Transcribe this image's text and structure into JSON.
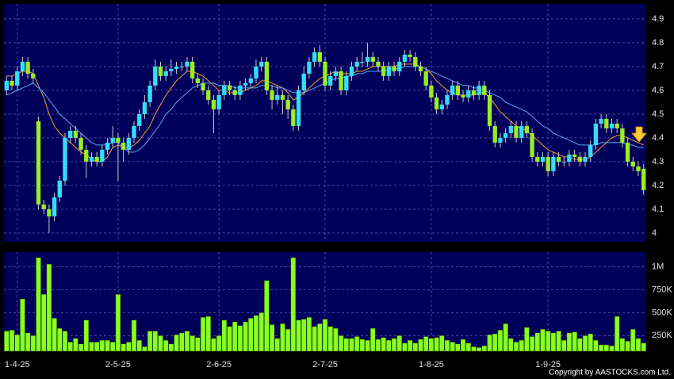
{
  "chart_data": {
    "type": "candlestick",
    "categories": [
      null,
      null,
      "1-4-25",
      null,
      null,
      null,
      null,
      null,
      null,
      null,
      null,
      null,
      null,
      null,
      null,
      null,
      null,
      null,
      null,
      null,
      null,
      "2-5-25",
      null,
      null,
      null,
      null,
      null,
      null,
      null,
      null,
      null,
      null,
      null,
      null,
      null,
      null,
      null,
      null,
      null,
      null,
      "2-6-25",
      null,
      null,
      null,
      null,
      null,
      null,
      null,
      null,
      null,
      null,
      null,
      null,
      null,
      null,
      null,
      null,
      null,
      null,
      null,
      "2-7-25",
      null,
      null,
      null,
      null,
      null,
      null,
      null,
      null,
      null,
      null,
      null,
      null,
      null,
      null,
      null,
      null,
      null,
      null,
      null,
      "1-8-25",
      null,
      null,
      null,
      null,
      null,
      null,
      null,
      null,
      null,
      null,
      null,
      null,
      null,
      null,
      null,
      null,
      null,
      null,
      null,
      null,
      null,
      "1-9-25",
      null,
      null,
      null,
      null,
      null,
      null,
      null,
      null,
      null,
      null,
      null,
      null,
      null,
      null,
      null,
      null,
      null,
      null
    ],
    "open": [
      4.6,
      4.64,
      4.62,
      4.68,
      4.72,
      4.67,
      4.47,
      4.12,
      4.1,
      4.07,
      4.15,
      4.22,
      4.4,
      4.43,
      4.4,
      4.35,
      4.3,
      4.32,
      4.3,
      4.35,
      4.38,
      4.4,
      4.38,
      4.35,
      4.4,
      4.45,
      4.5,
      4.55,
      4.62,
      4.7,
      4.66,
      4.68,
      4.69,
      4.7,
      4.7,
      4.72,
      4.65,
      4.63,
      4.6,
      4.56,
      4.52,
      4.58,
      4.62,
      4.6,
      4.58,
      4.62,
      4.63,
      4.65,
      4.7,
      4.72,
      4.6,
      4.56,
      4.58,
      4.56,
      4.52,
      4.45,
      4.6,
      4.67,
      4.72,
      4.76,
      4.72,
      4.62,
      4.66,
      4.68,
      4.6,
      4.66,
      4.7,
      4.72,
      4.72,
      4.74,
      4.72,
      4.7,
      4.66,
      4.7,
      4.68,
      4.72,
      4.75,
      4.74,
      4.7,
      4.68,
      4.62,
      4.57,
      4.52,
      4.54,
      4.58,
      4.62,
      4.58,
      4.57,
      4.6,
      4.58,
      4.62,
      4.58,
      4.45,
      4.38,
      4.4,
      4.42,
      4.45,
      4.4,
      4.45,
      4.42,
      4.32,
      4.3,
      4.32,
      4.26,
      4.32,
      4.3,
      4.3,
      4.33,
      4.32,
      4.3,
      4.32,
      4.37,
      4.46,
      4.48,
      4.44,
      4.46,
      4.44,
      4.38,
      4.3,
      4.28,
      4.27
    ],
    "high": [
      4.66,
      4.66,
      4.7,
      4.74,
      4.74,
      4.69,
      4.49,
      4.14,
      4.12,
      4.17,
      4.24,
      4.42,
      4.45,
      4.45,
      4.42,
      4.37,
      4.34,
      4.34,
      4.37,
      4.4,
      4.45,
      4.42,
      4.4,
      4.42,
      4.47,
      4.52,
      4.58,
      4.64,
      4.73,
      4.72,
      4.7,
      4.73,
      4.72,
      4.72,
      4.74,
      4.74,
      4.67,
      4.65,
      4.62,
      4.58,
      4.6,
      4.64,
      4.64,
      4.62,
      4.64,
      4.65,
      4.67,
      4.73,
      4.74,
      4.74,
      4.62,
      4.62,
      4.6,
      4.58,
      4.54,
      4.62,
      4.7,
      4.74,
      4.78,
      4.79,
      4.74,
      4.68,
      4.7,
      4.7,
      4.68,
      4.72,
      4.74,
      4.76,
      4.8,
      4.76,
      4.74,
      4.72,
      4.72,
      4.72,
      4.74,
      4.77,
      4.77,
      4.76,
      4.72,
      4.7,
      4.64,
      4.59,
      4.56,
      4.6,
      4.64,
      4.64,
      4.6,
      4.62,
      4.62,
      4.64,
      4.64,
      4.6,
      4.47,
      4.42,
      4.44,
      4.47,
      4.47,
      4.47,
      4.47,
      4.44,
      4.34,
      4.34,
      4.34,
      4.34,
      4.34,
      4.32,
      4.35,
      4.35,
      4.34,
      4.34,
      4.39,
      4.48,
      4.5,
      4.5,
      4.48,
      4.48,
      4.46,
      4.4,
      4.32,
      4.3,
      4.29
    ],
    "low": [
      4.58,
      4.6,
      4.6,
      4.66,
      4.65,
      4.63,
      4.1,
      4.08,
      4.0,
      4.05,
      4.13,
      4.2,
      4.38,
      4.38,
      4.33,
      4.23,
      4.28,
      4.28,
      4.28,
      4.33,
      4.36,
      4.22,
      4.3,
      4.33,
      4.38,
      4.43,
      4.48,
      4.53,
      4.6,
      4.64,
      4.64,
      4.66,
      4.67,
      4.68,
      4.68,
      4.63,
      4.61,
      4.58,
      4.54,
      4.42,
      4.5,
      4.56,
      4.58,
      4.56,
      4.56,
      4.6,
      4.61,
      4.63,
      4.68,
      4.58,
      4.52,
      4.54,
      4.5,
      4.48,
      4.43,
      4.43,
      4.58,
      4.65,
      4.7,
      4.7,
      4.6,
      4.6,
      4.64,
      4.58,
      4.58,
      4.64,
      4.68,
      4.7,
      4.7,
      4.7,
      4.68,
      4.64,
      4.64,
      4.66,
      4.66,
      4.7,
      4.72,
      4.68,
      4.66,
      4.6,
      4.55,
      4.5,
      4.5,
      4.52,
      4.56,
      4.56,
      4.55,
      4.55,
      4.56,
      4.56,
      4.56,
      4.43,
      4.36,
      4.36,
      4.38,
      4.4,
      4.38,
      4.38,
      4.4,
      4.3,
      4.28,
      4.28,
      4.24,
      4.24,
      4.28,
      4.28,
      4.28,
      4.3,
      4.28,
      4.28,
      4.3,
      4.35,
      4.44,
      4.42,
      4.42,
      4.42,
      4.36,
      4.28,
      4.26,
      4.24,
      4.16
    ],
    "close": [
      4.64,
      4.62,
      4.68,
      4.72,
      4.67,
      4.65,
      4.12,
      4.1,
      4.07,
      4.15,
      4.22,
      4.4,
      4.43,
      4.4,
      4.35,
      4.3,
      4.32,
      4.3,
      4.35,
      4.38,
      4.4,
      4.38,
      4.35,
      4.4,
      4.45,
      4.5,
      4.55,
      4.62,
      4.7,
      4.66,
      4.68,
      4.69,
      4.7,
      4.7,
      4.72,
      4.65,
      4.63,
      4.6,
      4.56,
      4.52,
      4.58,
      4.62,
      4.6,
      4.58,
      4.62,
      4.63,
      4.65,
      4.7,
      4.72,
      4.6,
      4.56,
      4.58,
      4.56,
      4.52,
      4.45,
      4.6,
      4.67,
      4.72,
      4.76,
      4.72,
      4.62,
      4.66,
      4.68,
      4.6,
      4.66,
      4.7,
      4.72,
      4.72,
      4.74,
      4.72,
      4.7,
      4.66,
      4.7,
      4.68,
      4.72,
      4.75,
      4.74,
      4.7,
      4.68,
      4.62,
      4.57,
      4.52,
      4.54,
      4.58,
      4.62,
      4.58,
      4.57,
      4.6,
      4.58,
      4.62,
      4.58,
      4.45,
      4.38,
      4.4,
      4.42,
      4.45,
      4.4,
      4.45,
      4.42,
      4.32,
      4.3,
      4.32,
      4.26,
      4.32,
      4.3,
      4.3,
      4.33,
      4.32,
      4.3,
      4.32,
      4.37,
      4.46,
      4.48,
      4.44,
      4.46,
      4.44,
      4.38,
      4.3,
      4.28,
      4.26,
      4.18
    ],
    "up_color": "#33ddff",
    "down_color": "#99ee22",
    "wick_color": "#c8c8c8",
    "ylim": [
      3.963,
      4.963
    ],
    "yticks": [
      4,
      4.1,
      4.2,
      4.3,
      4.4,
      4.5,
      4.6,
      4.7,
      4.8,
      4.9
    ],
    "grid": true,
    "ma_lines": [
      {
        "color": "#ff9933",
        "values": [
          4.66,
          4.66,
          4.67,
          4.68,
          4.68,
          4.67,
          4.62,
          4.57,
          4.5,
          4.45,
          4.42,
          4.4,
          4.38,
          4.36,
          4.34,
          4.33,
          4.31,
          4.3,
          4.3,
          4.32,
          4.36,
          4.37,
          4.36,
          4.36,
          4.37,
          4.39,
          4.42,
          4.45,
          4.5,
          4.54,
          4.58,
          4.61,
          4.64,
          4.66,
          4.68,
          4.68,
          4.67,
          4.66,
          4.64,
          4.62,
          4.6,
          4.6,
          4.59,
          4.59,
          4.59,
          4.6,
          4.61,
          4.62,
          4.64,
          4.64,
          4.63,
          4.62,
          4.61,
          4.59,
          4.56,
          4.57,
          4.59,
          4.61,
          4.63,
          4.65,
          4.66,
          4.67,
          4.68,
          4.67,
          4.67,
          4.67,
          4.68,
          4.68,
          4.69,
          4.7,
          4.7,
          4.7,
          4.7,
          4.7,
          4.71,
          4.71,
          4.71,
          4.71,
          4.7,
          4.69,
          4.67,
          4.64,
          4.62,
          4.6,
          4.59,
          4.58,
          4.58,
          4.58,
          4.58,
          4.59,
          4.59,
          4.57,
          4.54,
          4.51,
          4.49,
          4.47,
          4.45,
          4.44,
          4.43,
          4.41,
          4.39,
          4.37,
          4.35,
          4.34,
          4.33,
          4.32,
          4.32,
          4.31,
          4.31,
          4.31,
          4.32,
          4.34,
          4.36,
          4.38,
          4.4,
          4.41,
          4.41,
          4.4,
          4.39,
          4.38,
          4.37
        ]
      },
      {
        "color": "#5aaaf0",
        "values": [
          4.58,
          4.59,
          4.6,
          4.61,
          4.62,
          4.63,
          4.61,
          4.59,
          4.56,
          4.53,
          4.5,
          4.48,
          4.46,
          4.44,
          4.42,
          4.4,
          4.38,
          4.37,
          4.37,
          4.37,
          4.38,
          4.38,
          4.36,
          4.34,
          4.34,
          4.35,
          4.37,
          4.4,
          4.43,
          4.46,
          4.5,
          4.52,
          4.55,
          4.57,
          4.59,
          4.61,
          4.62,
          4.63,
          4.63,
          4.63,
          4.62,
          4.62,
          4.62,
          4.61,
          4.61,
          4.61,
          4.61,
          4.61,
          4.62,
          4.62,
          4.62,
          4.61,
          4.61,
          4.6,
          4.59,
          4.59,
          4.59,
          4.6,
          4.61,
          4.62,
          4.63,
          4.64,
          4.65,
          4.65,
          4.66,
          4.66,
          4.67,
          4.67,
          4.68,
          4.68,
          4.68,
          4.68,
          4.69,
          4.69,
          4.69,
          4.7,
          4.7,
          4.7,
          4.7,
          4.69,
          4.68,
          4.67,
          4.66,
          4.65,
          4.64,
          4.63,
          4.62,
          4.62,
          4.61,
          4.61,
          4.6,
          4.59,
          4.58,
          4.57,
          4.55,
          4.54,
          4.53,
          4.52,
          4.51,
          4.49,
          4.47,
          4.45,
          4.44,
          4.42,
          4.41,
          4.4,
          4.39,
          4.38,
          4.37,
          4.37,
          4.37,
          4.37,
          4.38,
          4.38,
          4.38,
          4.38,
          4.38,
          4.37,
          4.37,
          4.36,
          4.36
        ]
      }
    ],
    "volume": {
      "color": "#88ff22",
      "values": [
        300000,
        310000,
        260000,
        650000,
        280000,
        250000,
        1100000,
        700000,
        1030000,
        440000,
        330000,
        300000,
        180000,
        220000,
        160000,
        420000,
        180000,
        180000,
        200000,
        200000,
        180000,
        700000,
        160000,
        180000,
        420000,
        200000,
        130000,
        300000,
        300000,
        250000,
        200000,
        160000,
        260000,
        280000,
        300000,
        250000,
        230000,
        450000,
        460000,
        220000,
        250000,
        420000,
        350000,
        400000,
        360000,
        400000,
        440000,
        470000,
        500000,
        850000,
        370000,
        220000,
        380000,
        320000,
        1100000,
        420000,
        430000,
        450000,
        350000,
        380000,
        430000,
        350000,
        330000,
        250000,
        220000,
        220000,
        240000,
        210000,
        200000,
        330000,
        210000,
        230000,
        200000,
        220000,
        250000,
        170000,
        200000,
        170000,
        210000,
        240000,
        220000,
        230000,
        250000,
        200000,
        180000,
        160000,
        210000,
        170000,
        130000,
        120000,
        140000,
        260000,
        270000,
        310000,
        380000,
        220000,
        180000,
        200000,
        340000,
        240000,
        280000,
        320000,
        300000,
        280000,
        300000,
        200000,
        280000,
        290000,
        220000,
        250000,
        270000,
        200000,
        150000,
        150000,
        140000,
        460000,
        220000,
        190000,
        320000,
        220000,
        170000
      ],
      "ylim": [
        80000,
        1160000
      ],
      "yticks": [
        {
          "value": 250000,
          "label": "250K"
        },
        {
          "value": 500000,
          "label": "500K"
        },
        {
          "value": 750000,
          "label": "750K"
        },
        {
          "value": 1000000,
          "label": "1M"
        }
      ]
    },
    "copyright": "Copyright by AASTOCKS.com Ltd."
  }
}
